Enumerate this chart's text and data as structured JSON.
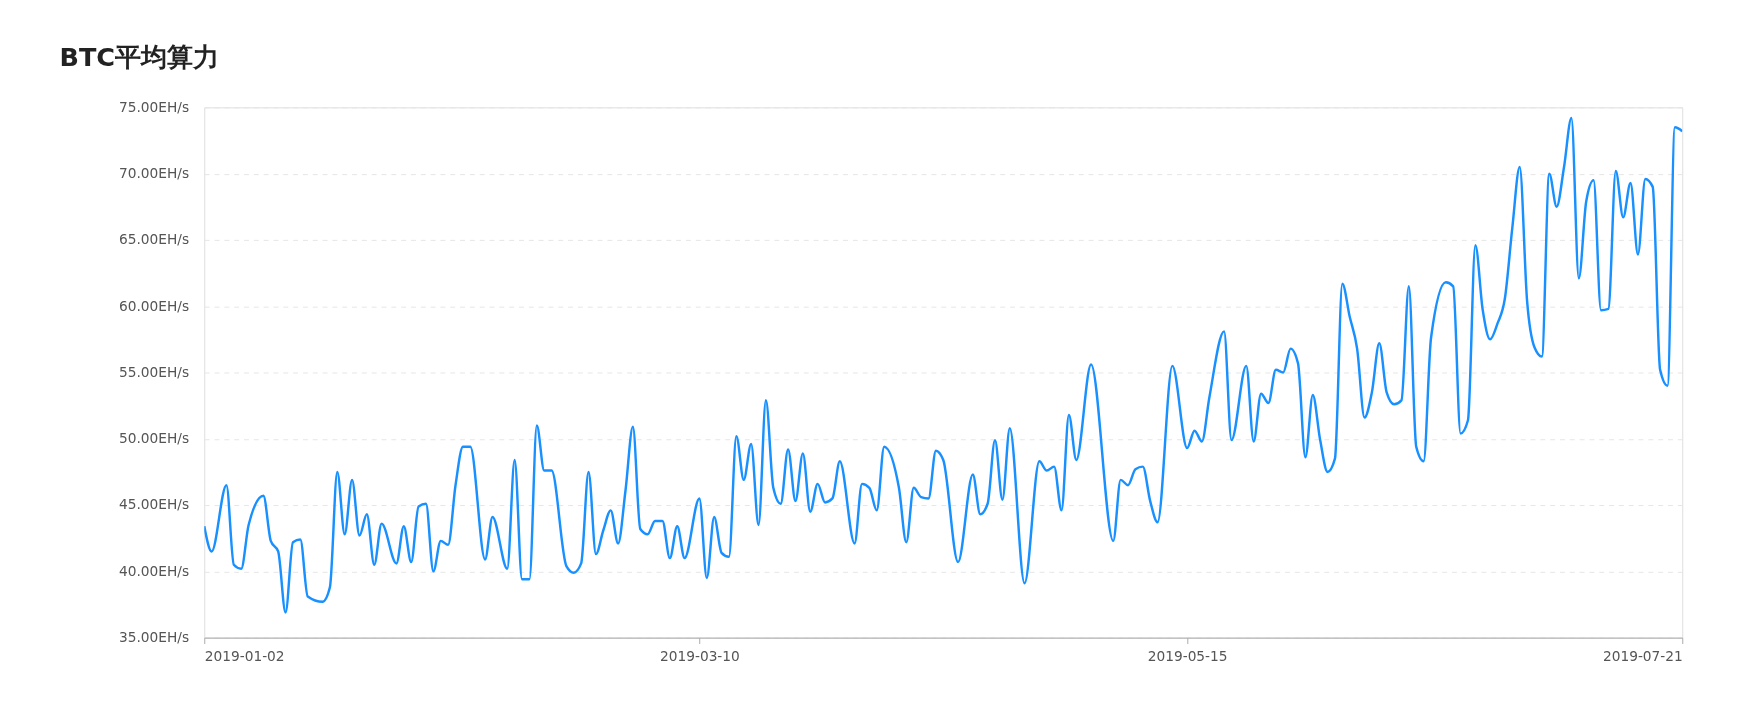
{
  "chart_data": {
    "type": "line",
    "title": "BTC平均算力",
    "x": [
      "2019-01-02",
      "2019-01-03",
      "2019-01-05",
      "2019-01-06",
      "2019-01-07",
      "2019-01-08",
      "2019-01-10",
      "2019-01-11",
      "2019-01-12",
      "2019-01-13",
      "2019-01-14",
      "2019-01-15",
      "2019-01-16",
      "2019-01-18",
      "2019-01-19",
      "2019-01-20",
      "2019-01-21",
      "2019-01-22",
      "2019-01-23",
      "2019-01-24",
      "2019-01-25",
      "2019-01-26",
      "2019-01-28",
      "2019-01-29",
      "2019-01-30",
      "2019-01-31",
      "2019-02-01",
      "2019-02-02",
      "2019-02-03",
      "2019-02-04",
      "2019-02-05",
      "2019-02-06",
      "2019-02-07",
      "2019-02-09",
      "2019-02-10",
      "2019-02-12",
      "2019-02-13",
      "2019-02-14",
      "2019-02-15",
      "2019-02-16",
      "2019-02-17",
      "2019-02-18",
      "2019-02-20",
      "2019-02-21",
      "2019-02-22",
      "2019-02-23",
      "2019-02-24",
      "2019-02-25",
      "2019-02-26",
      "2019-02-27",
      "2019-02-28",
      "2019-03-01",
      "2019-03-02",
      "2019-03-03",
      "2019-03-04",
      "2019-03-05",
      "2019-03-06",
      "2019-03-07",
      "2019-03-08",
      "2019-03-10",
      "2019-03-11",
      "2019-03-12",
      "2019-03-13",
      "2019-03-14",
      "2019-03-15",
      "2019-03-16",
      "2019-03-17",
      "2019-03-18",
      "2019-03-19",
      "2019-03-20",
      "2019-03-21",
      "2019-03-22",
      "2019-03-23",
      "2019-03-24",
      "2019-03-25",
      "2019-03-26",
      "2019-03-27",
      "2019-03-28",
      "2019-03-29",
      "2019-03-31",
      "2019-04-01",
      "2019-04-02",
      "2019-04-03",
      "2019-04-04",
      "2019-04-06",
      "2019-04-07",
      "2019-04-08",
      "2019-04-09",
      "2019-04-10",
      "2019-04-11",
      "2019-04-12",
      "2019-04-14",
      "2019-04-16",
      "2019-04-17",
      "2019-04-18",
      "2019-04-19",
      "2019-04-20",
      "2019-04-21",
      "2019-04-23",
      "2019-04-25",
      "2019-04-26",
      "2019-04-27",
      "2019-04-28",
      "2019-04-29",
      "2019-04-30",
      "2019-05-02",
      "2019-05-05",
      "2019-05-06",
      "2019-05-07",
      "2019-05-08",
      "2019-05-09",
      "2019-05-10",
      "2019-05-11",
      "2019-05-13",
      "2019-05-15",
      "2019-05-16",
      "2019-05-17",
      "2019-05-18",
      "2019-05-20",
      "2019-05-21",
      "2019-05-23",
      "2019-05-24",
      "2019-05-25",
      "2019-05-26",
      "2019-05-27",
      "2019-05-28",
      "2019-05-29",
      "2019-05-30",
      "2019-05-31",
      "2019-06-01",
      "2019-06-02",
      "2019-06-03",
      "2019-06-04",
      "2019-06-05",
      "2019-06-06",
      "2019-06-07",
      "2019-06-08",
      "2019-06-09",
      "2019-06-10",
      "2019-06-11",
      "2019-06-12",
      "2019-06-13",
      "2019-06-14",
      "2019-06-15",
      "2019-06-16",
      "2019-06-17",
      "2019-06-19",
      "2019-06-20",
      "2019-06-21",
      "2019-06-22",
      "2019-06-23",
      "2019-06-24",
      "2019-06-25",
      "2019-06-26",
      "2019-06-27",
      "2019-06-28",
      "2019-06-29",
      "2019-06-30",
      "2019-07-01",
      "2019-07-02",
      "2019-07-03",
      "2019-07-04",
      "2019-07-05",
      "2019-07-06",
      "2019-07-07",
      "2019-07-08",
      "2019-07-09",
      "2019-07-10",
      "2019-07-11",
      "2019-07-12",
      "2019-07-13",
      "2019-07-14",
      "2019-07-15",
      "2019-07-16",
      "2019-07-17",
      "2019-07-18",
      "2019-07-19",
      "2019-07-20",
      "2019-07-21"
    ],
    "series": [
      {
        "color": "#1890ff",
        "values": [
          43.4,
          41.5,
          46.5,
          40.5,
          40.2,
          43.5,
          45.7,
          42.3,
          41.5,
          36.9,
          42.2,
          42.4,
          38.1,
          37.7,
          38.8,
          47.5,
          42.8,
          46.9,
          42.7,
          44.3,
          40.5,
          43.6,
          40.6,
          43.4,
          40.7,
          44.9,
          45.1,
          40.0,
          42.3,
          42.0,
          46.5,
          49.4,
          49.4,
          40.9,
          44.1,
          40.2,
          48.4,
          39.4,
          39.4,
          51.0,
          47.6,
          47.6,
          40.4,
          39.9,
          40.6,
          47.5,
          41.3,
          43.1,
          44.6,
          42.1,
          46.1,
          50.9,
          43.2,
          42.8,
          43.8,
          43.8,
          41.0,
          43.4,
          41.0,
          45.5,
          39.5,
          44.1,
          41.4,
          41.1,
          50.2,
          46.9,
          49.6,
          43.5,
          52.9,
          46.3,
          45.1,
          49.2,
          45.3,
          48.9,
          44.5,
          46.6,
          45.2,
          45.5,
          48.3,
          42.1,
          46.6,
          46.3,
          44.6,
          49.4,
          46.3,
          42.2,
          46.3,
          45.6,
          45.5,
          49.1,
          48.4,
          40.7,
          47.3,
          44.3,
          45.1,
          49.9,
          45.4,
          50.8,
          39.1,
          48.3,
          47.6,
          47.9,
          44.6,
          51.8,
          48.4,
          55.6,
          42.3,
          46.9,
          46.5,
          47.7,
          47.9,
          45.3,
          43.7,
          55.5,
          49.3,
          50.6,
          49.8,
          53.1,
          58.1,
          49.9,
          55.5,
          49.8,
          53.4,
          52.7,
          55.2,
          55.0,
          56.8,
          55.7,
          48.6,
          53.3,
          49.9,
          47.5,
          48.5,
          61.7,
          59.2,
          56.8,
          51.6,
          53.5,
          57.2,
          53.5,
          52.6,
          52.9,
          61.5,
          49.4,
          48.3,
          57.6,
          61.8,
          61.5,
          50.4,
          51.4,
          64.6,
          59.7,
          57.5,
          58.7,
          60.6,
          65.9,
          70.5,
          60.4,
          56.9,
          56.2,
          70.0,
          67.5,
          70.5,
          74.2,
          62.1,
          67.9,
          69.5,
          59.7,
          59.8,
          70.2,
          66.7,
          69.3,
          63.9,
          69.6,
          69.0,
          55.2,
          54.0,
          73.5,
          73.2
        ]
      }
    ],
    "xlim": [
      "2019-01-02",
      "2019-07-21"
    ],
    "xticks": [
      "2019-01-02",
      "2019-03-10",
      "2019-05-15",
      "2019-07-21"
    ],
    "ylim": [
      35,
      75
    ],
    "yticks": [
      {
        "value": 35,
        "label": "35.00EH/s"
      },
      {
        "value": 40,
        "label": "40.00EH/s"
      },
      {
        "value": 45,
        "label": "45.00EH/s"
      },
      {
        "value": 50,
        "label": "50.00EH/s"
      },
      {
        "value": 55,
        "label": "55.00EH/s"
      },
      {
        "value": 60,
        "label": "60.00EH/s"
      },
      {
        "value": 65,
        "label": "65.00EH/s"
      },
      {
        "value": 70,
        "label": "70.00EH/s"
      },
      {
        "value": 75,
        "label": "75.00EH/s"
      }
    ],
    "grid": "y",
    "line_style": "solid",
    "marker": "none"
  }
}
